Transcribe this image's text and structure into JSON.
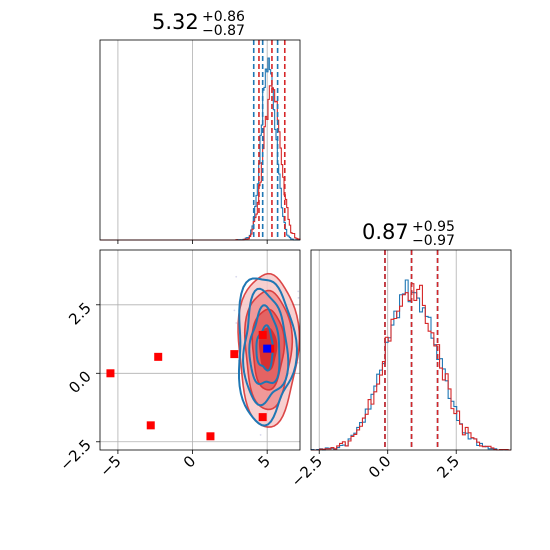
{
  "chart_data": [
    {
      "type": "histogram",
      "panel": "top-left",
      "title": {
        "value": "5.32",
        "plus": "+0.86",
        "minus": "−0.87"
      },
      "xlim": [
        -6.2,
        7.2
      ],
      "grid": true,
      "x_tick_values": [
        -5,
        0,
        5
      ],
      "quantiles": {
        "blue": [
          4.1,
          4.7,
          5.7
        ],
        "red": [
          4.45,
          5.32,
          6.18
        ]
      },
      "series": [
        {
          "color": "#1f77b4",
          "mean": 5.1,
          "sd": 0.48
        },
        {
          "color": "#d62728",
          "mean": 5.32,
          "sd": 0.55
        }
      ]
    },
    {
      "type": "histogram",
      "panel": "bottom-right",
      "title": {
        "value": "0.87",
        "plus": "+0.95",
        "minus": "−0.97"
      },
      "xlim": [
        -2.8,
        4.5
      ],
      "grid": true,
      "x_ticks": [
        "−2.5",
        "0.0",
        "2.5"
      ],
      "x_tick_values": [
        -2.5,
        0.0,
        2.5
      ],
      "quantiles": {
        "blue": [
          -0.1,
          0.87,
          1.82
        ],
        "red": [
          -0.1,
          0.87,
          1.82
        ]
      },
      "series": [
        {
          "color": "#1f77b4",
          "mean": 0.85,
          "sd": 0.95
        },
        {
          "color": "#d62728",
          "mean": 0.87,
          "sd": 0.96
        }
      ]
    },
    {
      "type": "scatter",
      "panel": "bottom-left",
      "xlim": [
        -6.2,
        7.2
      ],
      "ylim": [
        -2.8,
        4.5
      ],
      "grid": true,
      "x_ticks": [
        "−5",
        "0",
        "5"
      ],
      "x_tick_values": [
        -5,
        0,
        5
      ],
      "y_ticks": [
        "−2.5",
        "0.0",
        "2.5"
      ],
      "y_tick_values": [
        -2.5,
        0.0,
        2.5
      ],
      "contour_center": {
        "x": 5.0,
        "y": 0.9
      },
      "contour_spread": {
        "x": 1.0,
        "y": 1.4
      },
      "blue_marker": {
        "x": 5.0,
        "y": 0.9,
        "color": "#0000ff"
      },
      "red_markers": {
        "color": "#ff0000",
        "x": [
          -5.5,
          -2.3,
          -2.8,
          1.2,
          2.8,
          4.7,
          4.7,
          5.2
        ],
        "y": [
          0.0,
          0.6,
          -1.9,
          -2.3,
          0.7,
          -1.6,
          1.4,
          0.9
        ]
      }
    }
  ]
}
